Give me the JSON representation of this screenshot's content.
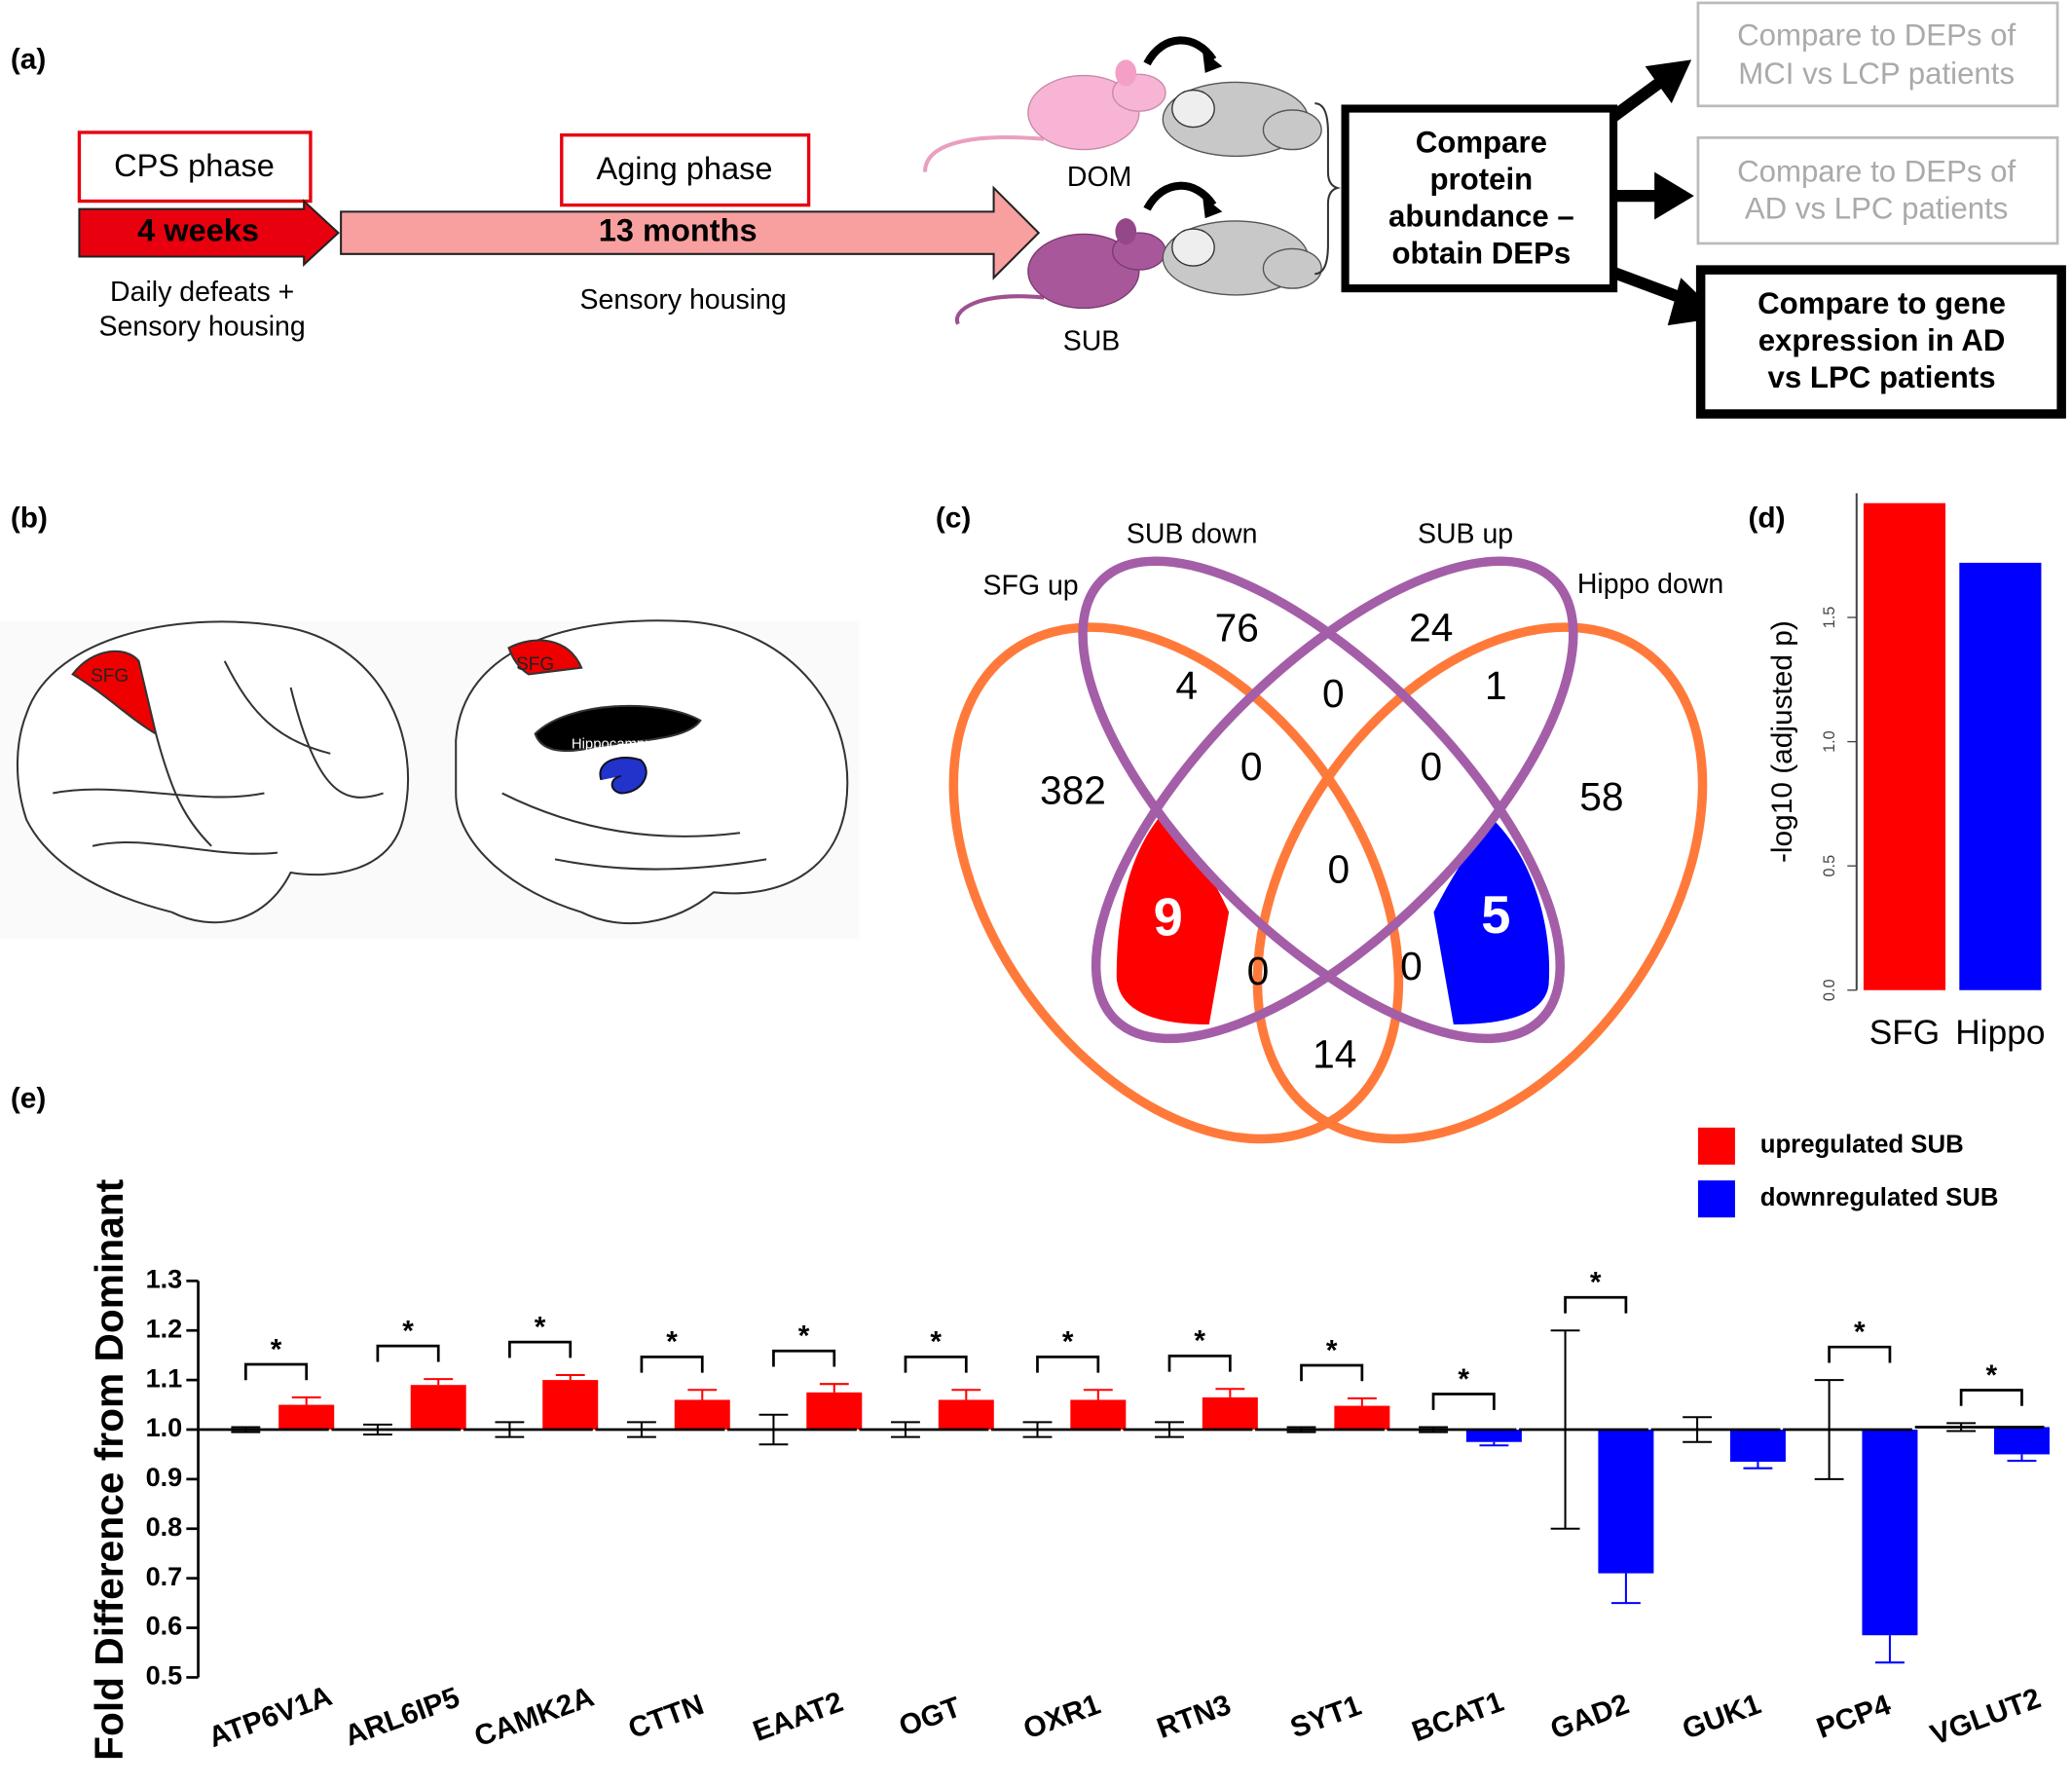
{
  "panel_a": {
    "label": "(a)",
    "cps_phase": "CPS phase",
    "cps_duration": "4 weeks",
    "cps_note": [
      "Daily defeats +",
      "Sensory housing"
    ],
    "aging_phase": "Aging phase",
    "aging_duration": "13 months",
    "aging_note": "Sensory housing",
    "dom": "DOM",
    "sub": "SUB",
    "compare": [
      "Compare",
      "protein",
      "abundance –",
      "obtain DEPs"
    ],
    "outcomes": [
      [
        "Compare to DEPs of",
        "MCI vs LCP patients"
      ],
      [
        "Compare to DEPs of",
        "AD vs LPC patients"
      ],
      [
        "Compare to gene",
        "expression in AD",
        "vs LPC patients"
      ]
    ]
  },
  "panel_b": {
    "label": "(b)",
    "sfg": "SFG",
    "hippocampus": "Hippocampus"
  },
  "panel_c": {
    "label": "(c)",
    "sets": [
      "SFG up",
      "SUB down",
      "SUB up",
      "Hippo down"
    ],
    "regions": [
      76,
      24,
      4,
      0,
      1,
      382,
      0,
      0,
      58,
      0,
      9,
      5,
      0,
      0,
      14
    ]
  },
  "panel_d": {
    "label": "(d)"
  },
  "panel_e": {
    "label": "(e)"
  },
  "chart_data": [
    {
      "type": "bar",
      "ylabel": "-log10 (adjusted p)",
      "categories": [
        "SFG",
        "Hippo"
      ],
      "values": [
        1.96,
        1.72
      ],
      "colors": [
        "#ff0000",
        "#0000ff"
      ],
      "ylim": [
        0,
        2
      ],
      "yticks": [
        {
          "value": 0,
          "label": "0.0"
        },
        0.5,
        {
          "value": 1,
          "label": "1.0"
        },
        1.5
      ]
    },
    {
      "type": "foldbar",
      "ylabel": "Fold Difference from Dominant",
      "categories": [
        "ATP6V1A",
        "ARL6IP5",
        "CAMK2A",
        "CTTN",
        "EAAT2",
        "OGT",
        "OXR1",
        "RTN3",
        "SYT1",
        "BCAT1",
        "GAD2",
        "GUK1",
        "PCP4",
        "VGLUT2"
      ],
      "series": [
        {
          "values": [
            1.0,
            1.0,
            1.0,
            1.0,
            1.0,
            1.0,
            1.0,
            1.0,
            1.0,
            1.0,
            1.0,
            1.0,
            1.0,
            1.005
          ],
          "errors": [
            0.005,
            0.01,
            0.015,
            0.015,
            0.03,
            0.015,
            0.015,
            0.015,
            0.005,
            0.005,
            0.2,
            0.025,
            0.1,
            0.008
          ],
          "color": "#000000"
        },
        {
          "values": [
            1.05,
            1.09,
            1.1,
            1.06,
            1.075,
            1.06,
            1.06,
            1.065,
            1.048,
            0.975,
            0.71,
            0.935,
            0.585,
            0.95
          ],
          "errors": [
            0.015,
            0.012,
            0.01,
            0.02,
            0.017,
            0.02,
            0.02,
            0.017,
            0.015,
            0.007,
            0.06,
            0.013,
            0.055,
            0.013
          ]
        }
      ],
      "legend": [
        {
          "label": "upregulated SUB",
          "color": "#ff0000"
        },
        {
          "label": "downregulated SUB",
          "color": "#0000ff"
        }
      ],
      "significance_label": "*",
      "significant": [
        true,
        true,
        true,
        true,
        true,
        true,
        true,
        true,
        true,
        true,
        true,
        false,
        true,
        true
      ],
      "ylim": [
        0.5,
        1.3
      ],
      "yticks": [
        0.5,
        0.6,
        0.7,
        0.8,
        0.9,
        {
          "value": 1,
          "label": "1.0"
        },
        1.1,
        1.2,
        1.3
      ]
    }
  ]
}
